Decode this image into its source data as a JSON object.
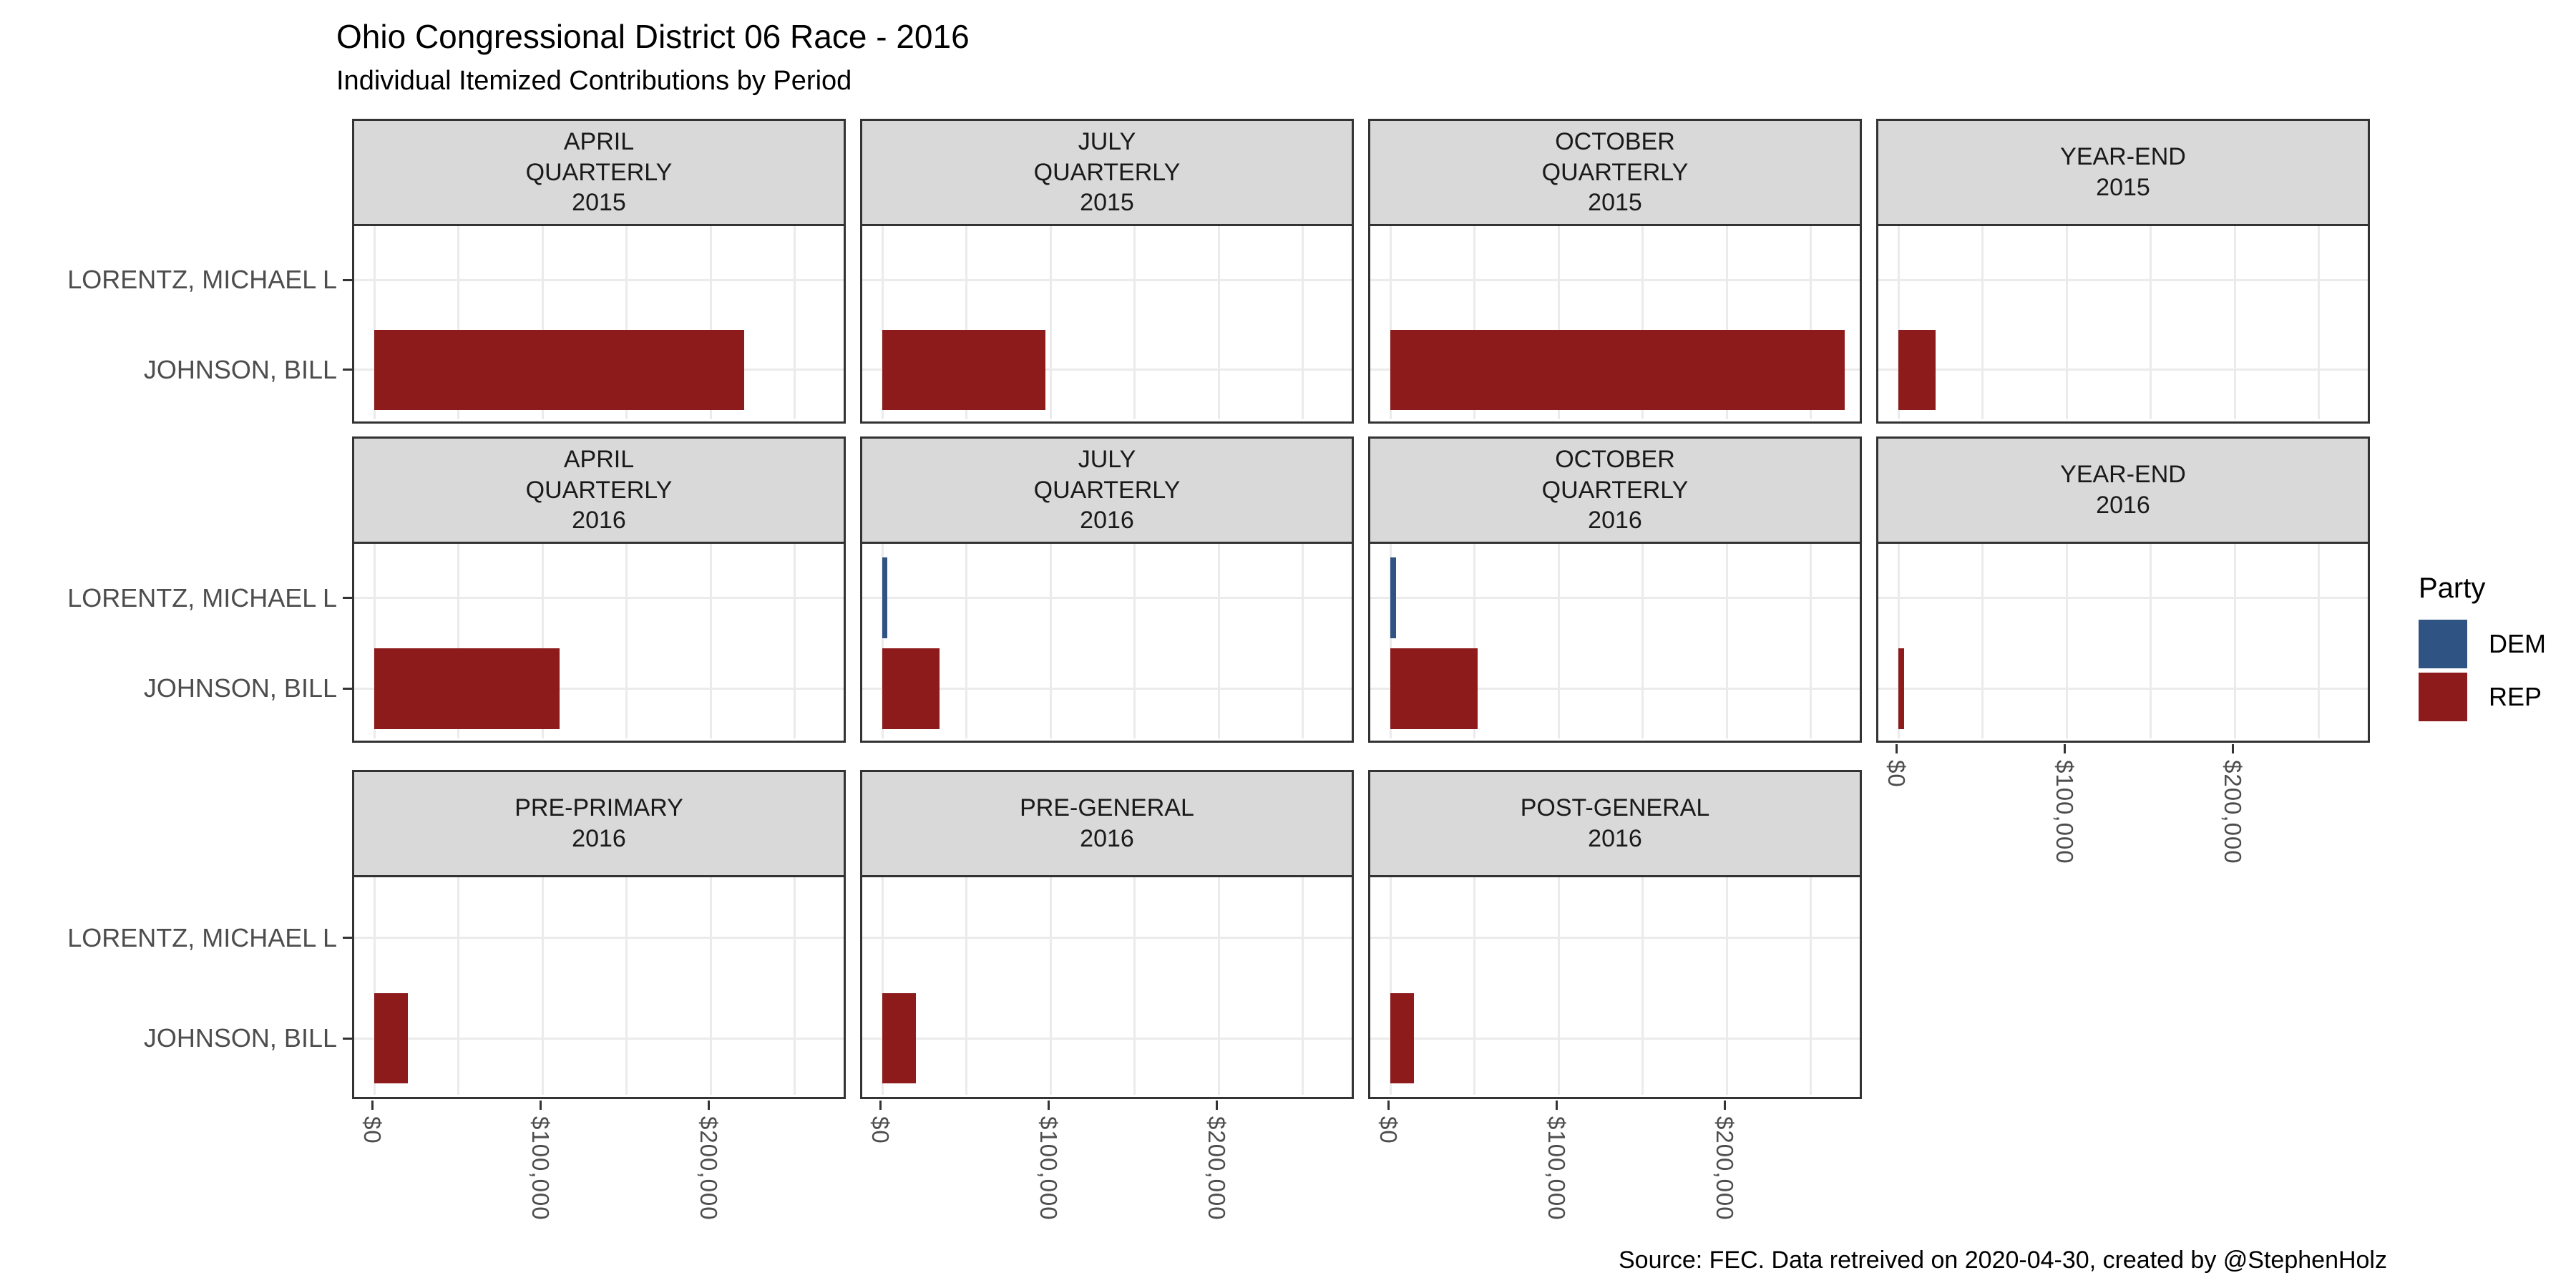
{
  "title": "Ohio Congressional District 06 Race - 2016",
  "subtitle": "Individual Itemized Contributions by Period",
  "caption": "Source: FEC. Data retreived on 2020-04-30, created by @StephenHolz",
  "legend": {
    "title": "Party",
    "items": [
      {
        "label": "DEM",
        "color": "#2F5382"
      },
      {
        "label": "REP",
        "color": "#8E1B1B"
      }
    ]
  },
  "colors": {
    "dem": "#2F5382",
    "rep": "#8E1B1B",
    "strip_fill": "#D9D9D9",
    "panel_border": "#333333",
    "gridline": "#EBEBEB",
    "axis_text": "#4D4D4D"
  },
  "chart_data": {
    "type": "bar",
    "orientation": "horizontal",
    "unit": "USD",
    "categories": [
      "LORENTZ, MICHAEL L",
      "JOHNSON, BILL"
    ],
    "x_axis": {
      "tick_labels": [
        "$0",
        "$100,000",
        "$200,000"
      ],
      "tick_values": [
        0,
        100000,
        200000
      ],
      "minor_gridline_step": 50000,
      "xlim": [
        0,
        280000
      ],
      "grid": true
    },
    "facet_grid": {
      "rows": 3,
      "cols": 4
    },
    "facets": [
      {
        "row": 0,
        "col": 0,
        "label_lines": [
          "APRIL",
          "QUARTERLY",
          "2015"
        ],
        "bars": [
          {
            "candidate": "JOHNSON, BILL",
            "party": "REP",
            "value": 220000
          }
        ]
      },
      {
        "row": 0,
        "col": 1,
        "label_lines": [
          "JULY",
          "QUARTERLY",
          "2015"
        ],
        "bars": [
          {
            "candidate": "JOHNSON, BILL",
            "party": "REP",
            "value": 97000
          }
        ]
      },
      {
        "row": 0,
        "col": 2,
        "label_lines": [
          "OCTOBER",
          "QUARTERLY",
          "2015"
        ],
        "bars": [
          {
            "candidate": "JOHNSON, BILL",
            "party": "REP",
            "value": 270000
          }
        ]
      },
      {
        "row": 0,
        "col": 3,
        "label_lines": [
          "YEAR-END",
          "2015"
        ],
        "bars": [
          {
            "candidate": "JOHNSON, BILL",
            "party": "REP",
            "value": 22000
          }
        ]
      },
      {
        "row": 1,
        "col": 0,
        "label_lines": [
          "APRIL",
          "QUARTERLY",
          "2016"
        ],
        "bars": [
          {
            "candidate": "JOHNSON, BILL",
            "party": "REP",
            "value": 110000
          }
        ]
      },
      {
        "row": 1,
        "col": 1,
        "label_lines": [
          "JULY",
          "QUARTERLY",
          "2016"
        ],
        "bars": [
          {
            "candidate": "LORENTZ, MICHAEL L",
            "party": "DEM",
            "value": 3000
          },
          {
            "candidate": "JOHNSON, BILL",
            "party": "REP",
            "value": 34000
          }
        ]
      },
      {
        "row": 1,
        "col": 2,
        "label_lines": [
          "OCTOBER",
          "QUARTERLY",
          "2016"
        ],
        "bars": [
          {
            "candidate": "LORENTZ, MICHAEL L",
            "party": "DEM",
            "value": 3500
          },
          {
            "candidate": "JOHNSON, BILL",
            "party": "REP",
            "value": 52000
          }
        ]
      },
      {
        "row": 1,
        "col": 3,
        "label_lines": [
          "YEAR-END",
          "2016"
        ],
        "bars": [
          {
            "candidate": "JOHNSON, BILL",
            "party": "REP",
            "value": 3500
          }
        ]
      },
      {
        "row": 2,
        "col": 0,
        "label_lines": [
          "PRE-PRIMARY",
          "2016"
        ],
        "bars": [
          {
            "candidate": "JOHNSON, BILL",
            "party": "REP",
            "value": 20000
          }
        ]
      },
      {
        "row": 2,
        "col": 1,
        "label_lines": [
          "PRE-GENERAL",
          "2016"
        ],
        "bars": [
          {
            "candidate": "JOHNSON, BILL",
            "party": "REP",
            "value": 20000
          }
        ]
      },
      {
        "row": 2,
        "col": 2,
        "label_lines": [
          "POST-GENERAL",
          "2016"
        ],
        "bars": [
          {
            "candidate": "JOHNSON, BILL",
            "party": "REP",
            "value": 14000
          }
        ]
      }
    ]
  }
}
